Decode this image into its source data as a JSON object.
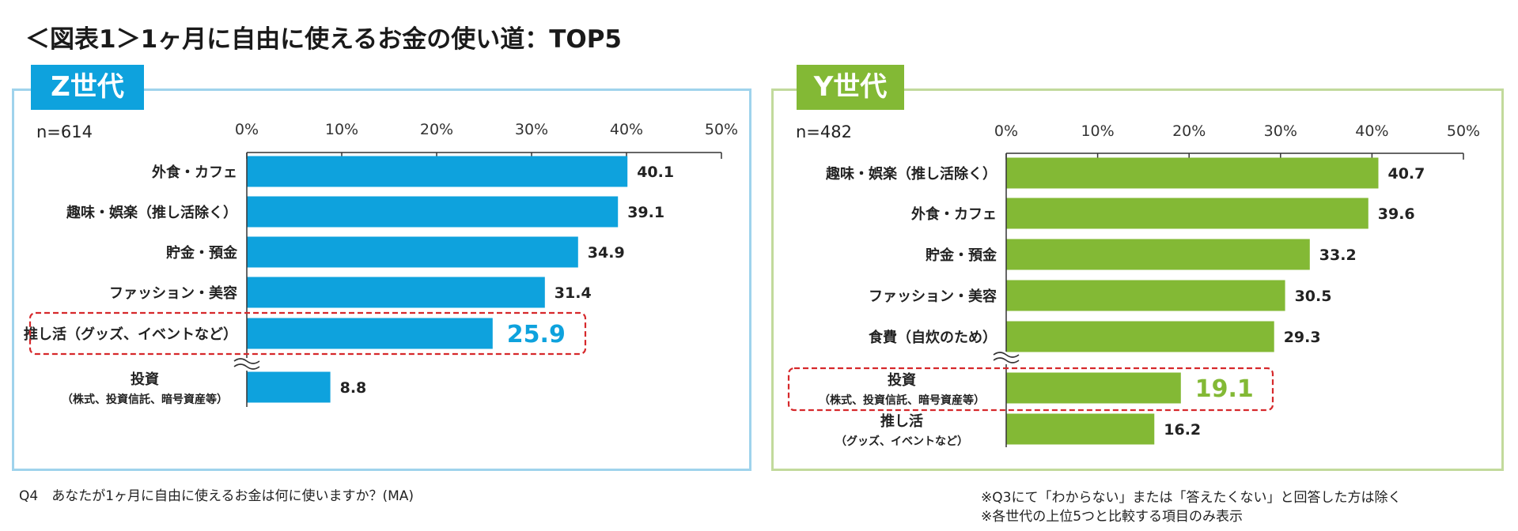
{
  "title": "＜図表1＞1ヶ月に自由に使えるお金の使い道：TOP5",
  "colors": {
    "z": "#0ea2dd",
    "y": "#83b935",
    "highlight": "#d6282b",
    "axis": "#333333"
  },
  "chart_data": [
    {
      "type": "bar",
      "orientation": "horizontal",
      "panel_label": "Z世代",
      "sample_size": "n=614",
      "xlim": [
        0,
        50
      ],
      "tick_labels": [
        "0%",
        "10%",
        "20%",
        "30%",
        "40%",
        "50%"
      ],
      "categories": [
        [
          "外食・カフェ"
        ],
        [
          "趣味・娯楽（推し活除く）"
        ],
        [
          "貯金・預金"
        ],
        [
          "ファッション・美容"
        ],
        [
          "推し活（グッズ、イベントなど）"
        ],
        [
          "投資",
          "（株式、投資信託、暗号資産等）"
        ]
      ],
      "values": [
        40.1,
        39.1,
        34.9,
        31.4,
        25.9,
        8.8
      ],
      "value_labels": [
        "40.1",
        "39.1",
        "34.9",
        "31.4",
        "25.9",
        "8.8"
      ],
      "highlighted_index": 4,
      "break_before_index": 5
    },
    {
      "type": "bar",
      "orientation": "horizontal",
      "panel_label": "Y世代",
      "sample_size": "n=482",
      "xlim": [
        0,
        50
      ],
      "tick_labels": [
        "0%",
        "10%",
        "20%",
        "30%",
        "40%",
        "50%"
      ],
      "categories": [
        [
          "趣味・娯楽（推し活除く）"
        ],
        [
          "外食・カフェ"
        ],
        [
          "貯金・預金"
        ],
        [
          "ファッション・美容"
        ],
        [
          "食費（自炊のため）"
        ],
        [
          "投資",
          "（株式、投資信託、暗号資産等）"
        ],
        [
          "推し活",
          "（グッズ、イベントなど）"
        ]
      ],
      "values": [
        40.7,
        39.6,
        33.2,
        30.5,
        29.3,
        19.1,
        16.2
      ],
      "value_labels": [
        "40.7",
        "39.6",
        "33.2",
        "30.5",
        "29.3",
        "19.1",
        "16.2"
      ],
      "highlighted_index": 5,
      "break_before_index": 5
    }
  ],
  "footnotes": {
    "question": "Q4　あなたが1ヶ月に自由に使えるお金は何に使いますか？(MA)",
    "note1": "※Q3にて「わからない」または「答えたくない」と回答した方は除く",
    "note2": "※各世代の上位5つと比較する項目のみ表示"
  }
}
